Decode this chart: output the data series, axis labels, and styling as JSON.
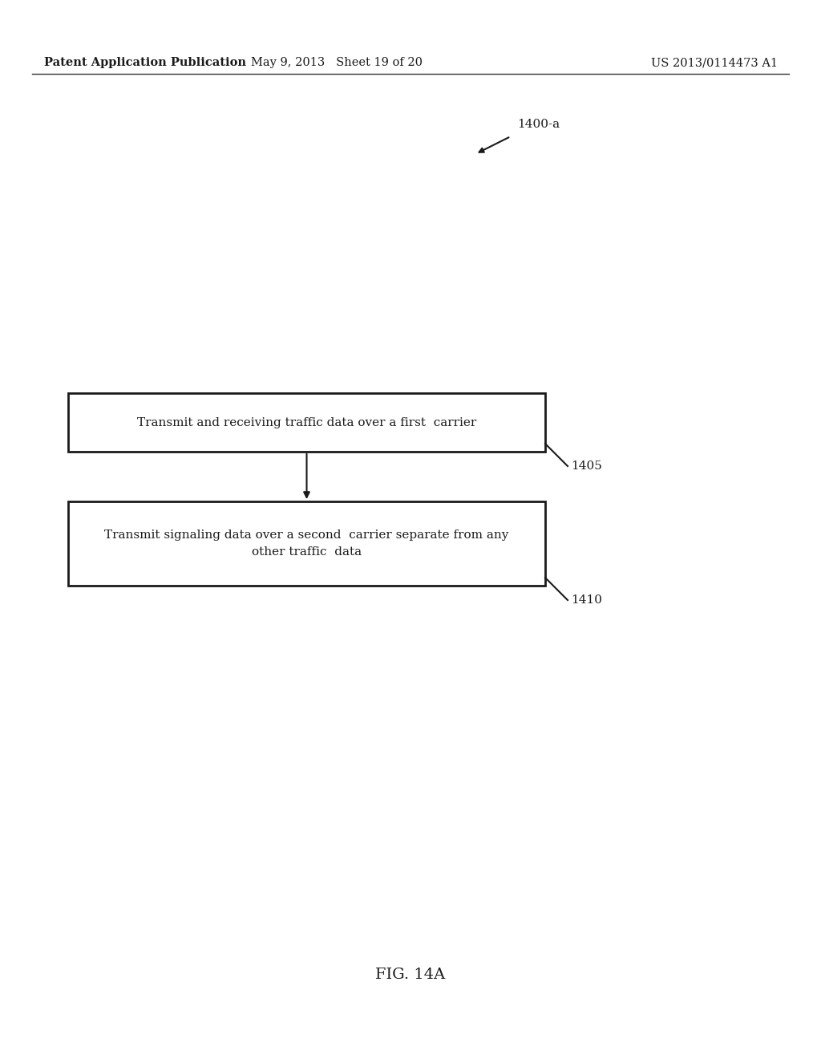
{
  "background_color": "#ffffff",
  "header_left": "Patent Application Publication",
  "header_center": "May 9, 2013   Sheet 19 of 20",
  "header_right": "US 2013/0114473 A1",
  "header_fontsize": 10.5,
  "label_1400a": "1400-a",
  "box1_text": "Transmit and receiving traffic data over a first  carrier",
  "box1_label": "1405",
  "box2_text": "Transmit signaling data over a second  carrier separate from any\nother traffic  data",
  "box2_label": "1410",
  "fig_label": "FIG. 14A",
  "text_fontsize": 11,
  "label_fontsize": 11,
  "fig_label_fontsize": 14
}
